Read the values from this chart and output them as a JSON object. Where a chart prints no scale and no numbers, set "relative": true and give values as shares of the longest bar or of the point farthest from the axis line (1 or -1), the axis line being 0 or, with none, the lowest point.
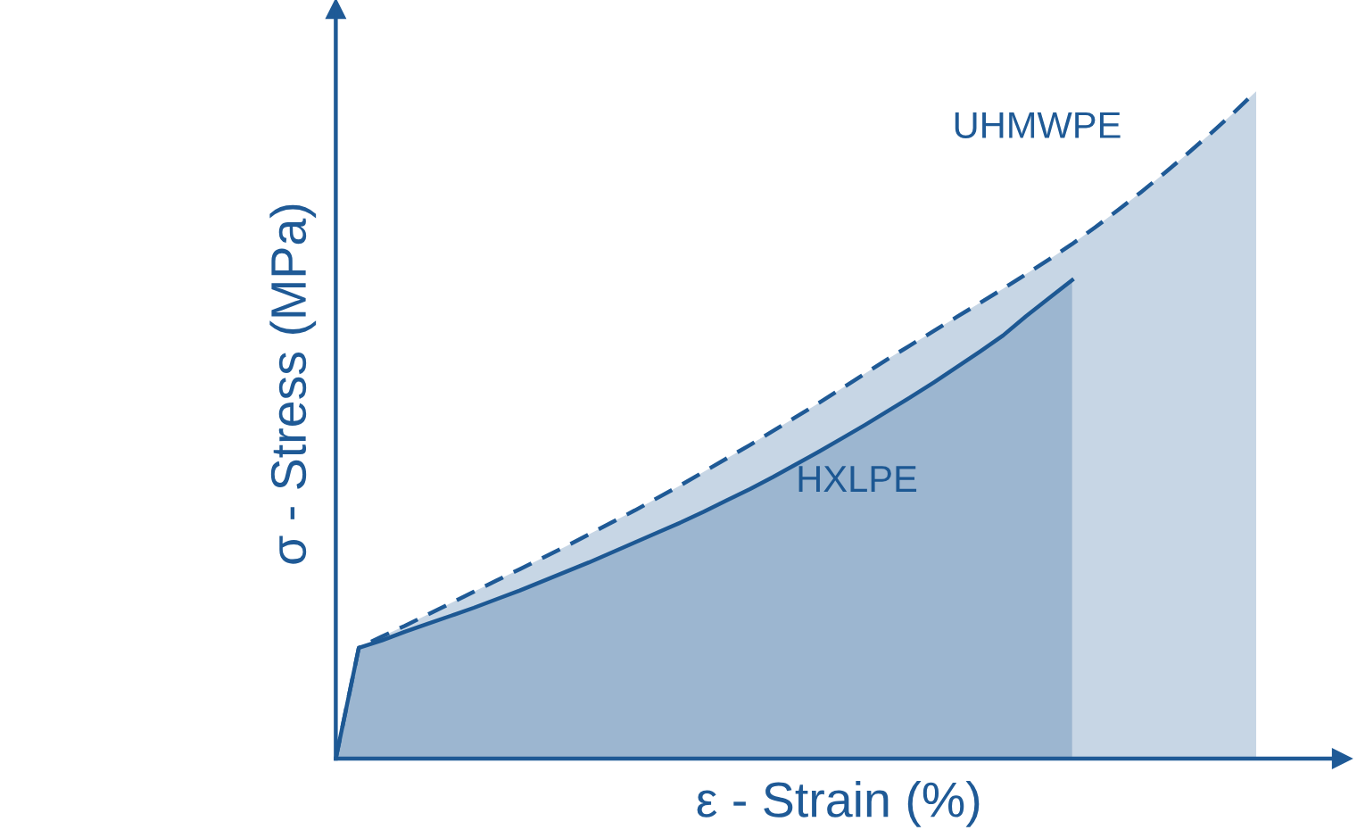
{
  "chart_data": {
    "type": "area",
    "relative": true,
    "xlabel": "ε - Strain (%)",
    "ylabel": "σ - Stress (MPa)",
    "categories": [
      null,
      null,
      null,
      null,
      null,
      null,
      null,
      null,
      null,
      null,
      null,
      null,
      null,
      null,
      null,
      null,
      null,
      null,
      null,
      null,
      null,
      null,
      null,
      null,
      null,
      null,
      null,
      null,
      null,
      null,
      null,
      null,
      null,
      null,
      null,
      null,
      null,
      null,
      null,
      null,
      null
    ],
    "series": [
      {
        "name": "UHMWPE",
        "color": "#1f5a96",
        "line_style": "dashed",
        "values": [
          0,
          0.166,
          0.183,
          0.199,
          0.216,
          0.233,
          0.25,
          0.267,
          0.284,
          0.301,
          0.318,
          0.336,
          0.354,
          0.372,
          0.391,
          0.41,
          0.43,
          0.45,
          0.47,
          0.491,
          0.512,
          0.533,
          0.555,
          0.577,
          0.599,
          0.62,
          0.641,
          0.662,
          0.683,
          0.704,
          0.726,
          0.748,
          0.771,
          0.796,
          0.822,
          0.849,
          0.877,
          0.906,
          0.936,
          0.967,
          1
        ]
      },
      {
        "name": "HXLPE",
        "color": "#1d5893",
        "line_style": "solid",
        "values": [
          0,
          0.166,
          0.177,
          0.19,
          0.202,
          0.214,
          0.226,
          0.239,
          0.252,
          0.266,
          0.28,
          0.294,
          0.309,
          0.324,
          0.339,
          0.354,
          0.37,
          0.387,
          0.404,
          0.422,
          0.441,
          0.46,
          0.48,
          0.5,
          0.521,
          0.542,
          0.564,
          0.587,
          0.61,
          0.634,
          0.663,
          0.69,
          0.717,
          null,
          null,
          null,
          null,
          null,
          null,
          null,
          null
        ]
      }
    ]
  }
}
